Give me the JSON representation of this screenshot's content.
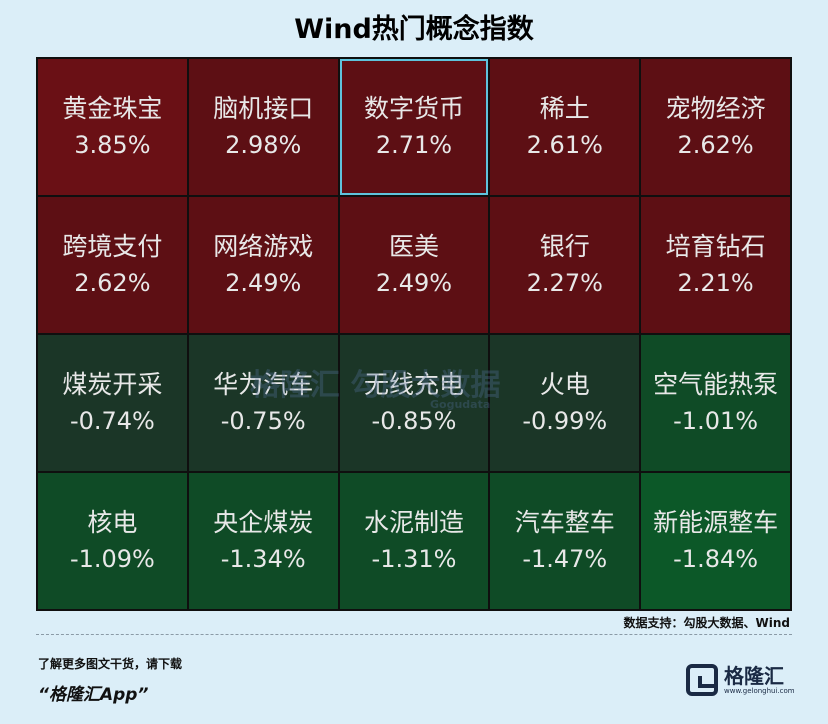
{
  "title": "Wind热门概念指数",
  "watermark": {
    "main": "格隆汇 勾股大数据",
    "sub": "Gogudata"
  },
  "source": "数据支持：勾股大数据、Wind",
  "footer": {
    "line1": "了解更多图文干货，请下载",
    "line2": "“格隆汇App”"
  },
  "logo": {
    "name": "格隆汇",
    "url": "www.gelonghui.com"
  },
  "colors": {
    "strong_red": "#6a1015",
    "red": "#5d0f14",
    "dark_green": "#1b3627",
    "green": "#0f4b26",
    "bright_green": "#0c5828",
    "selected_border": "#5fc3dc"
  },
  "chart_data": {
    "type": "heatmap",
    "title": "Wind热门概念指数",
    "unit": "%",
    "cells": [
      {
        "name": "黄金珠宝",
        "value": 3.85,
        "label": "3.85%"
      },
      {
        "name": "脑机接口",
        "value": 2.98,
        "label": "2.98%"
      },
      {
        "name": "数字货币",
        "value": 2.71,
        "label": "2.71%",
        "selected": true
      },
      {
        "name": "稀土",
        "value": 2.61,
        "label": "2.61%"
      },
      {
        "name": "宠物经济",
        "value": 2.62,
        "label": "2.62%"
      },
      {
        "name": "跨境支付",
        "value": 2.62,
        "label": "2.62%"
      },
      {
        "name": "网络游戏",
        "value": 2.49,
        "label": "2.49%"
      },
      {
        "name": "医美",
        "value": 2.49,
        "label": "2.49%"
      },
      {
        "name": "银行",
        "value": 2.27,
        "label": "2.27%"
      },
      {
        "name": "培育钻石",
        "value": 2.21,
        "label": "2.21%"
      },
      {
        "name": "煤炭开采",
        "value": -0.74,
        "label": "-0.74%"
      },
      {
        "name": "华为汽车",
        "value": -0.75,
        "label": "-0.75%"
      },
      {
        "name": "无线充电",
        "value": -0.85,
        "label": "-0.85%"
      },
      {
        "name": "火电",
        "value": -0.99,
        "label": "-0.99%"
      },
      {
        "name": "空气能热泵",
        "value": -1.01,
        "label": "-1.01%"
      },
      {
        "name": "核电",
        "value": -1.09,
        "label": "-1.09%"
      },
      {
        "name": "央企煤炭",
        "value": -1.34,
        "label": "-1.34%"
      },
      {
        "name": "水泥制造",
        "value": -1.31,
        "label": "-1.31%"
      },
      {
        "name": "汽车整车",
        "value": -1.47,
        "label": "-1.47%"
      },
      {
        "name": "新能源整车",
        "value": -1.84,
        "label": "-1.84%"
      }
    ]
  }
}
